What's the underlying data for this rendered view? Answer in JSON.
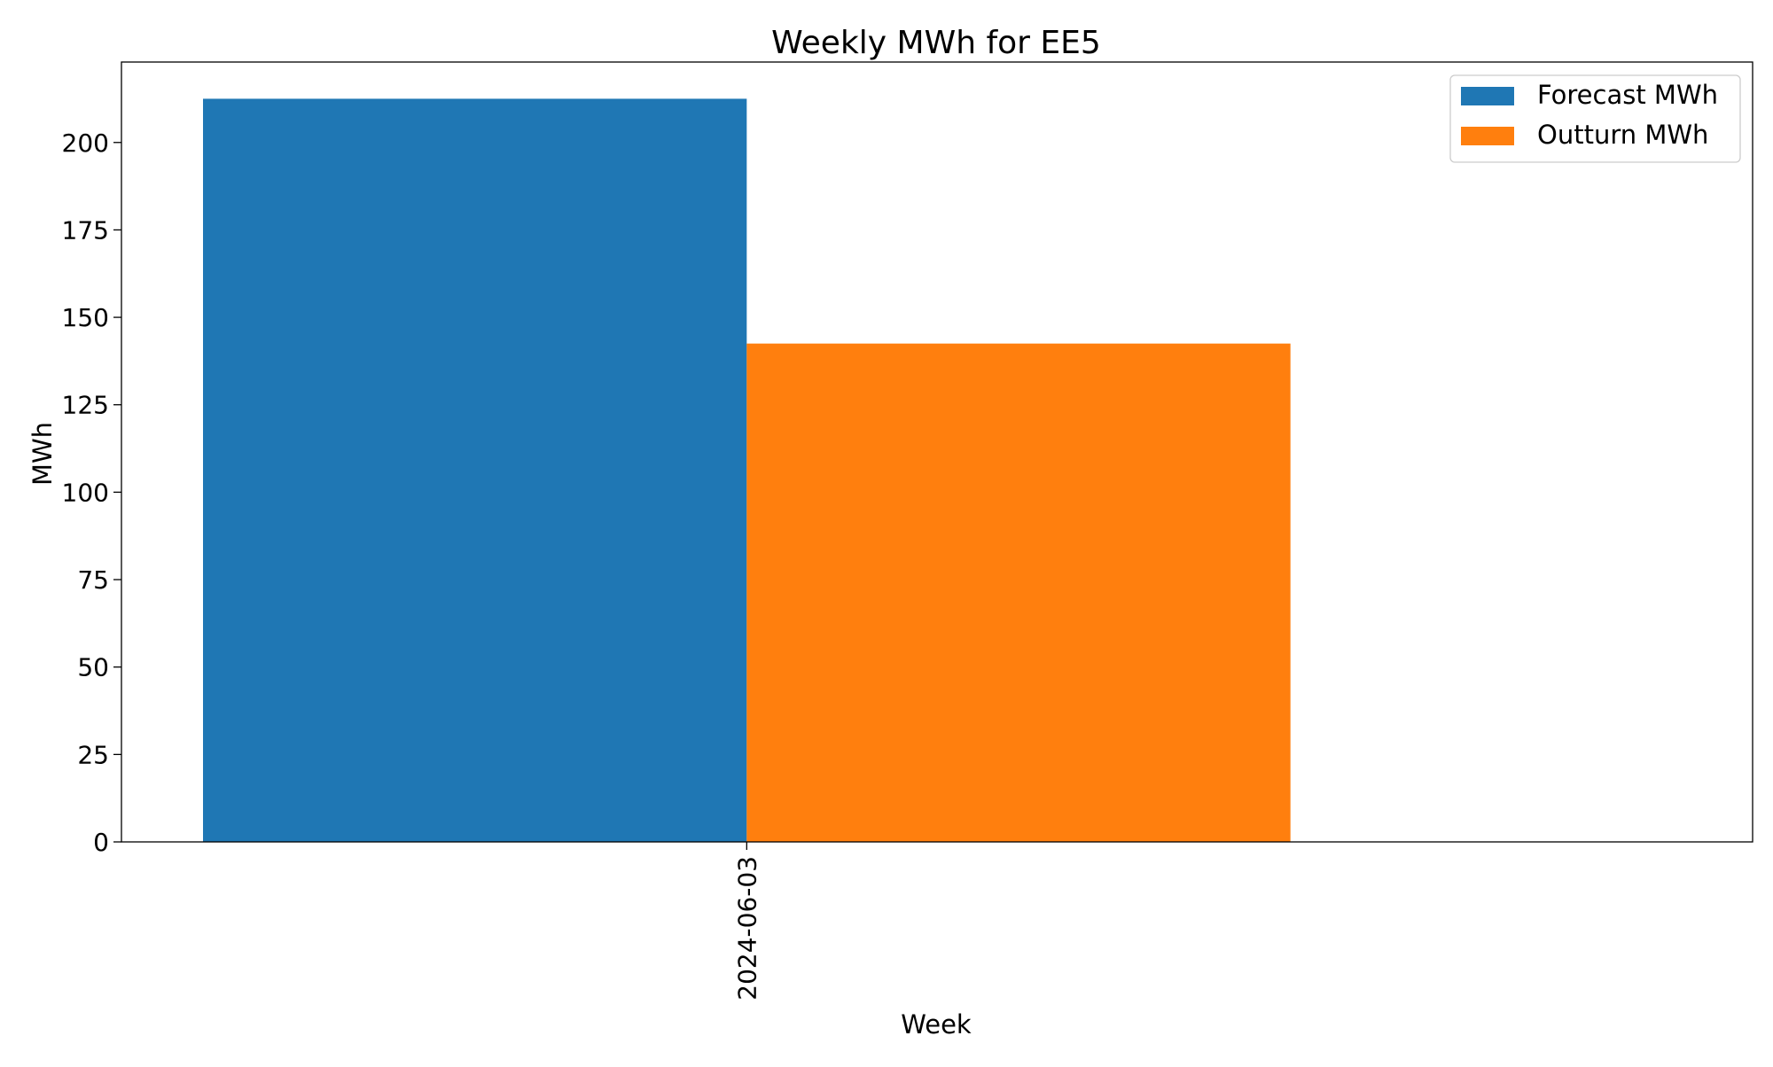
{
  "chart_data": {
    "type": "bar",
    "title": "Weekly MWh for EE5",
    "xlabel": "Week",
    "ylabel": "MWh",
    "categories": [
      "2024-06-03"
    ],
    "series": [
      {
        "name": "Forecast MWh",
        "values": [
          212.5
        ],
        "color": "#1f77b4"
      },
      {
        "name": "Outturn MWh",
        "values": [
          142.5
        ],
        "color": "#ff7f0e"
      }
    ],
    "ylim": [
      0,
      223
    ],
    "yticks": [
      0,
      25,
      50,
      75,
      100,
      125,
      150,
      175,
      200
    ],
    "grid": false,
    "legend_position": "top-right"
  }
}
